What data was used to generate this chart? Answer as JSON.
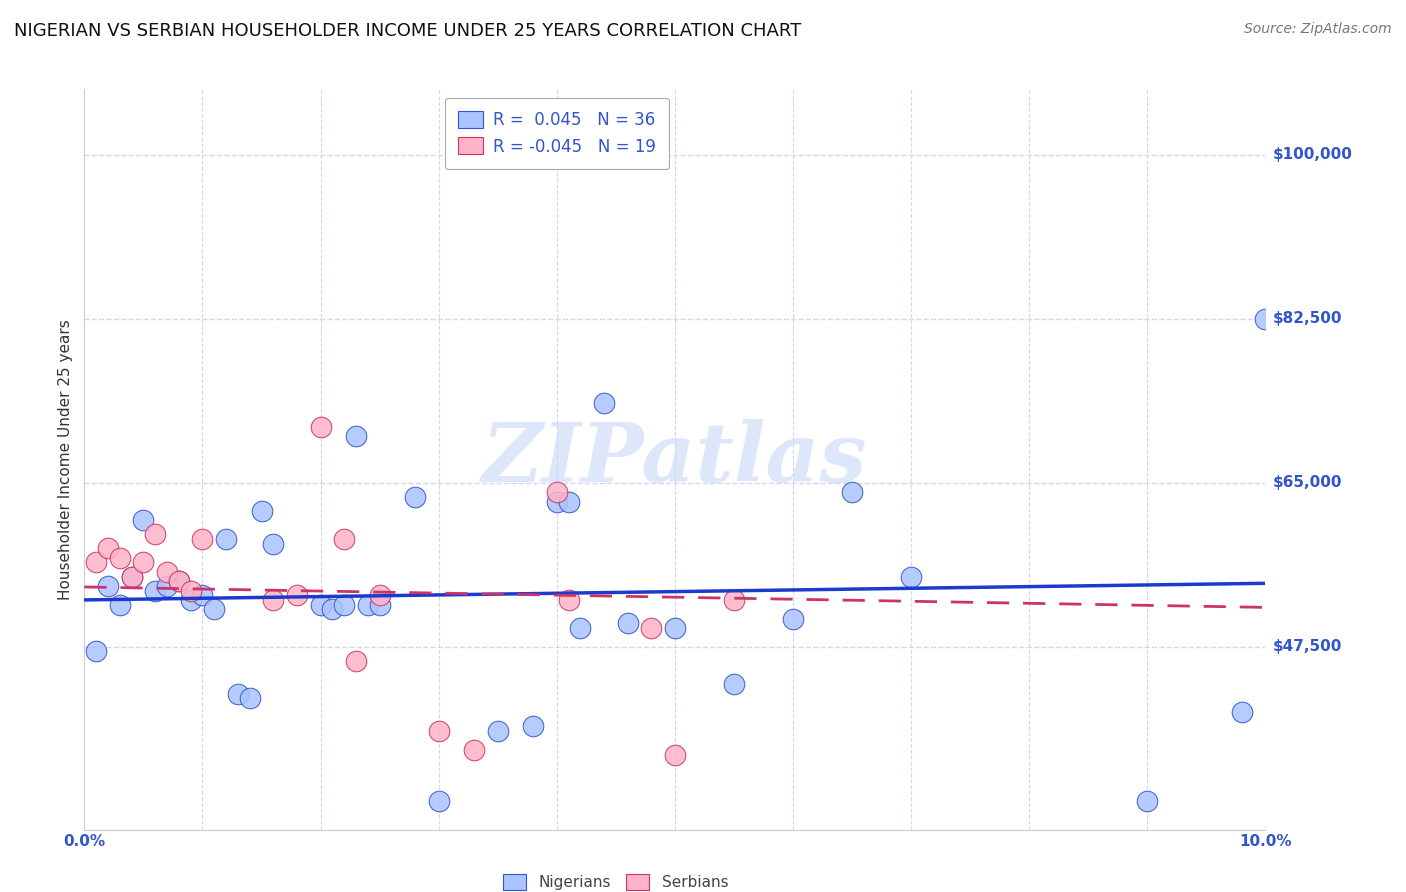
{
  "title": "NIGERIAN VS SERBIAN HOUSEHOLDER INCOME UNDER 25 YEARS CORRELATION CHART",
  "source": "Source: ZipAtlas.com",
  "ylabel": "Householder Income Under 25 years",
  "watermark": "ZIPatlas",
  "ytick_labels": [
    "$47,500",
    "$65,000",
    "$82,500",
    "$100,000"
  ],
  "ytick_values": [
    47500,
    65000,
    82500,
    100000
  ],
  "ymin": 28000,
  "ymax": 107000,
  "xmin": 0.0,
  "xmax": 0.1,
  "nigerian_color": "#aac4ff",
  "nigerian_edge_color": "#3355cc",
  "nigerian_line_color": "#1a3bcc",
  "serbian_color": "#ffb3c6",
  "serbian_edge_color": "#cc3366",
  "serbian_line_color": "#cc3366",
  "nigerian_R": 0.045,
  "serbian_R": -0.045,
  "background_color": "#ffffff",
  "grid_color": "#d0d8f0",
  "title_fontsize": 13,
  "axis_label_fontsize": 11,
  "tick_label_color": "#3355cc",
  "tick_label_fontsize": 11,
  "source_fontsize": 10,
  "watermark_color": "#c8d8f8",
  "watermark_fontsize": 60,
  "legend_label_color": "#3355cc",
  "legend_fontsize": 12,
  "nigerians": [
    [
      0.001,
      47000
    ],
    [
      0.002,
      54000
    ],
    [
      0.003,
      52000
    ],
    [
      0.004,
      55000
    ],
    [
      0.005,
      61000
    ],
    [
      0.006,
      53500
    ],
    [
      0.007,
      54000
    ],
    [
      0.008,
      54500
    ],
    [
      0.009,
      52500
    ],
    [
      0.01,
      53000
    ],
    [
      0.011,
      51500
    ],
    [
      0.012,
      59000
    ],
    [
      0.013,
      42500
    ],
    [
      0.014,
      42000
    ],
    [
      0.015,
      62000
    ],
    [
      0.016,
      58500
    ],
    [
      0.02,
      52000
    ],
    [
      0.021,
      51500
    ],
    [
      0.022,
      52000
    ],
    [
      0.023,
      70000
    ],
    [
      0.024,
      52000
    ],
    [
      0.025,
      52000
    ],
    [
      0.028,
      63500
    ],
    [
      0.03,
      31000
    ],
    [
      0.035,
      38500
    ],
    [
      0.038,
      39000
    ],
    [
      0.04,
      63000
    ],
    [
      0.041,
      63000
    ],
    [
      0.042,
      49500
    ],
    [
      0.044,
      73500
    ],
    [
      0.046,
      50000
    ],
    [
      0.05,
      49500
    ],
    [
      0.055,
      43500
    ],
    [
      0.06,
      50500
    ],
    [
      0.065,
      64000
    ],
    [
      0.07,
      55000
    ],
    [
      0.09,
      31000
    ],
    [
      0.098,
      40500
    ],
    [
      0.1,
      82500
    ]
  ],
  "serbians": [
    [
      0.001,
      56500
    ],
    [
      0.002,
      58000
    ],
    [
      0.003,
      57000
    ],
    [
      0.004,
      55000
    ],
    [
      0.005,
      56500
    ],
    [
      0.006,
      59500
    ],
    [
      0.007,
      55500
    ],
    [
      0.008,
      54500
    ],
    [
      0.009,
      53500
    ],
    [
      0.01,
      59000
    ],
    [
      0.016,
      52500
    ],
    [
      0.018,
      53000
    ],
    [
      0.02,
      71000
    ],
    [
      0.022,
      59000
    ],
    [
      0.023,
      46000
    ],
    [
      0.025,
      53000
    ],
    [
      0.03,
      38500
    ],
    [
      0.033,
      36500
    ],
    [
      0.04,
      64000
    ],
    [
      0.041,
      52500
    ],
    [
      0.048,
      49500
    ],
    [
      0.05,
      36000
    ],
    [
      0.055,
      52500
    ]
  ]
}
